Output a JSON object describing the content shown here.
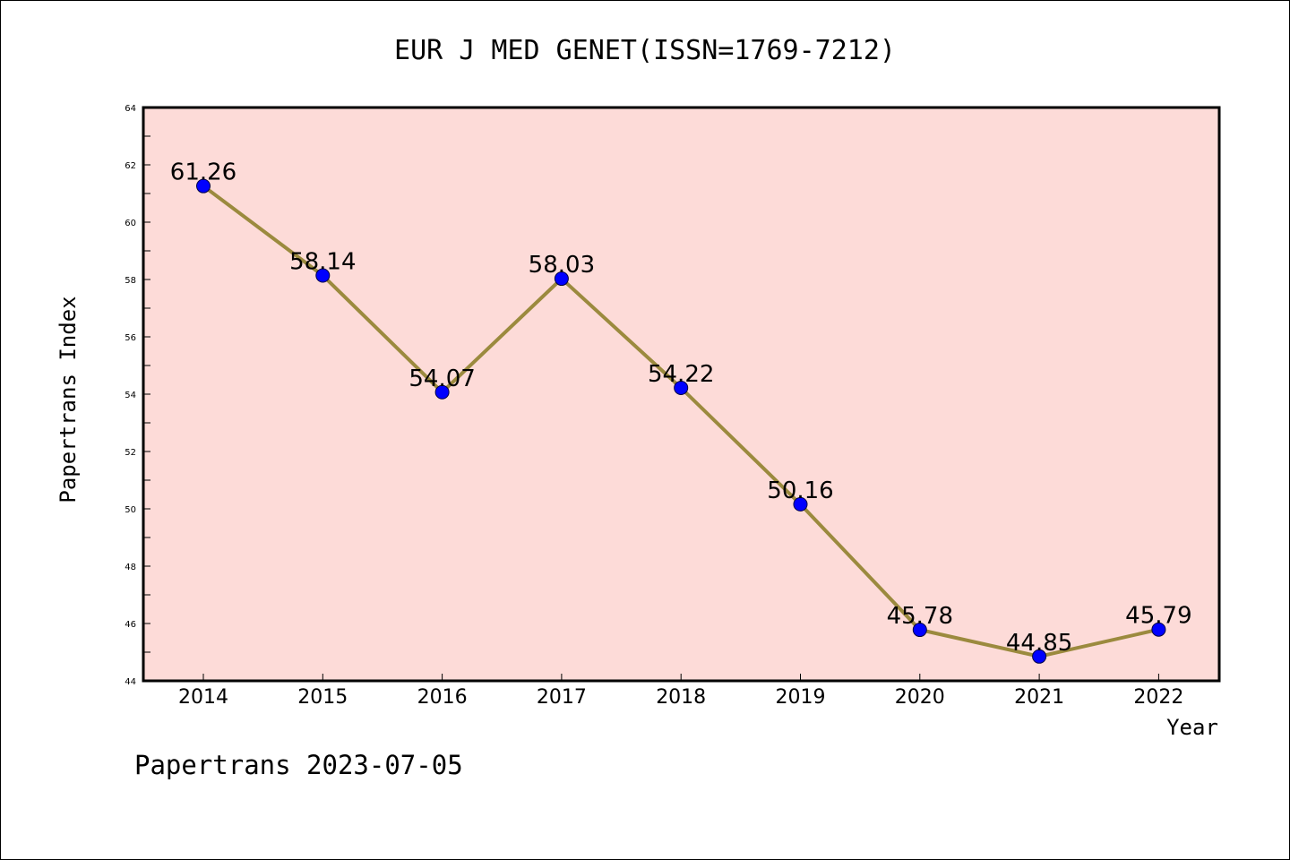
{
  "chart_data": {
    "type": "line",
    "title": "EUR J MED GENET(ISSN=1769-7212)",
    "xlabel": "Year",
    "ylabel": "Papertrans Index",
    "x": [
      "2014",
      "2015",
      "2016",
      "2017",
      "2018",
      "2019",
      "2020",
      "2021",
      "2022"
    ],
    "values": [
      61.26,
      58.14,
      54.07,
      58.03,
      54.22,
      50.16,
      45.78,
      44.85,
      45.79
    ],
    "data_labels": [
      "61.26",
      "58.14",
      "54.07",
      "58.03",
      "54.22",
      "50.16",
      "45.78",
      "44.85",
      "45.79"
    ],
    "ylim": [
      44,
      64
    ],
    "yticks": [
      "44",
      "46",
      "48",
      "50",
      "52",
      "54",
      "56",
      "58",
      "60",
      "62",
      "64"
    ],
    "grid": false,
    "colors": {
      "plot_background": "#fddbd8",
      "line": "#9b8a3e",
      "marker": "#0000ff"
    }
  },
  "footer": "Papertrans 2023-07-05"
}
